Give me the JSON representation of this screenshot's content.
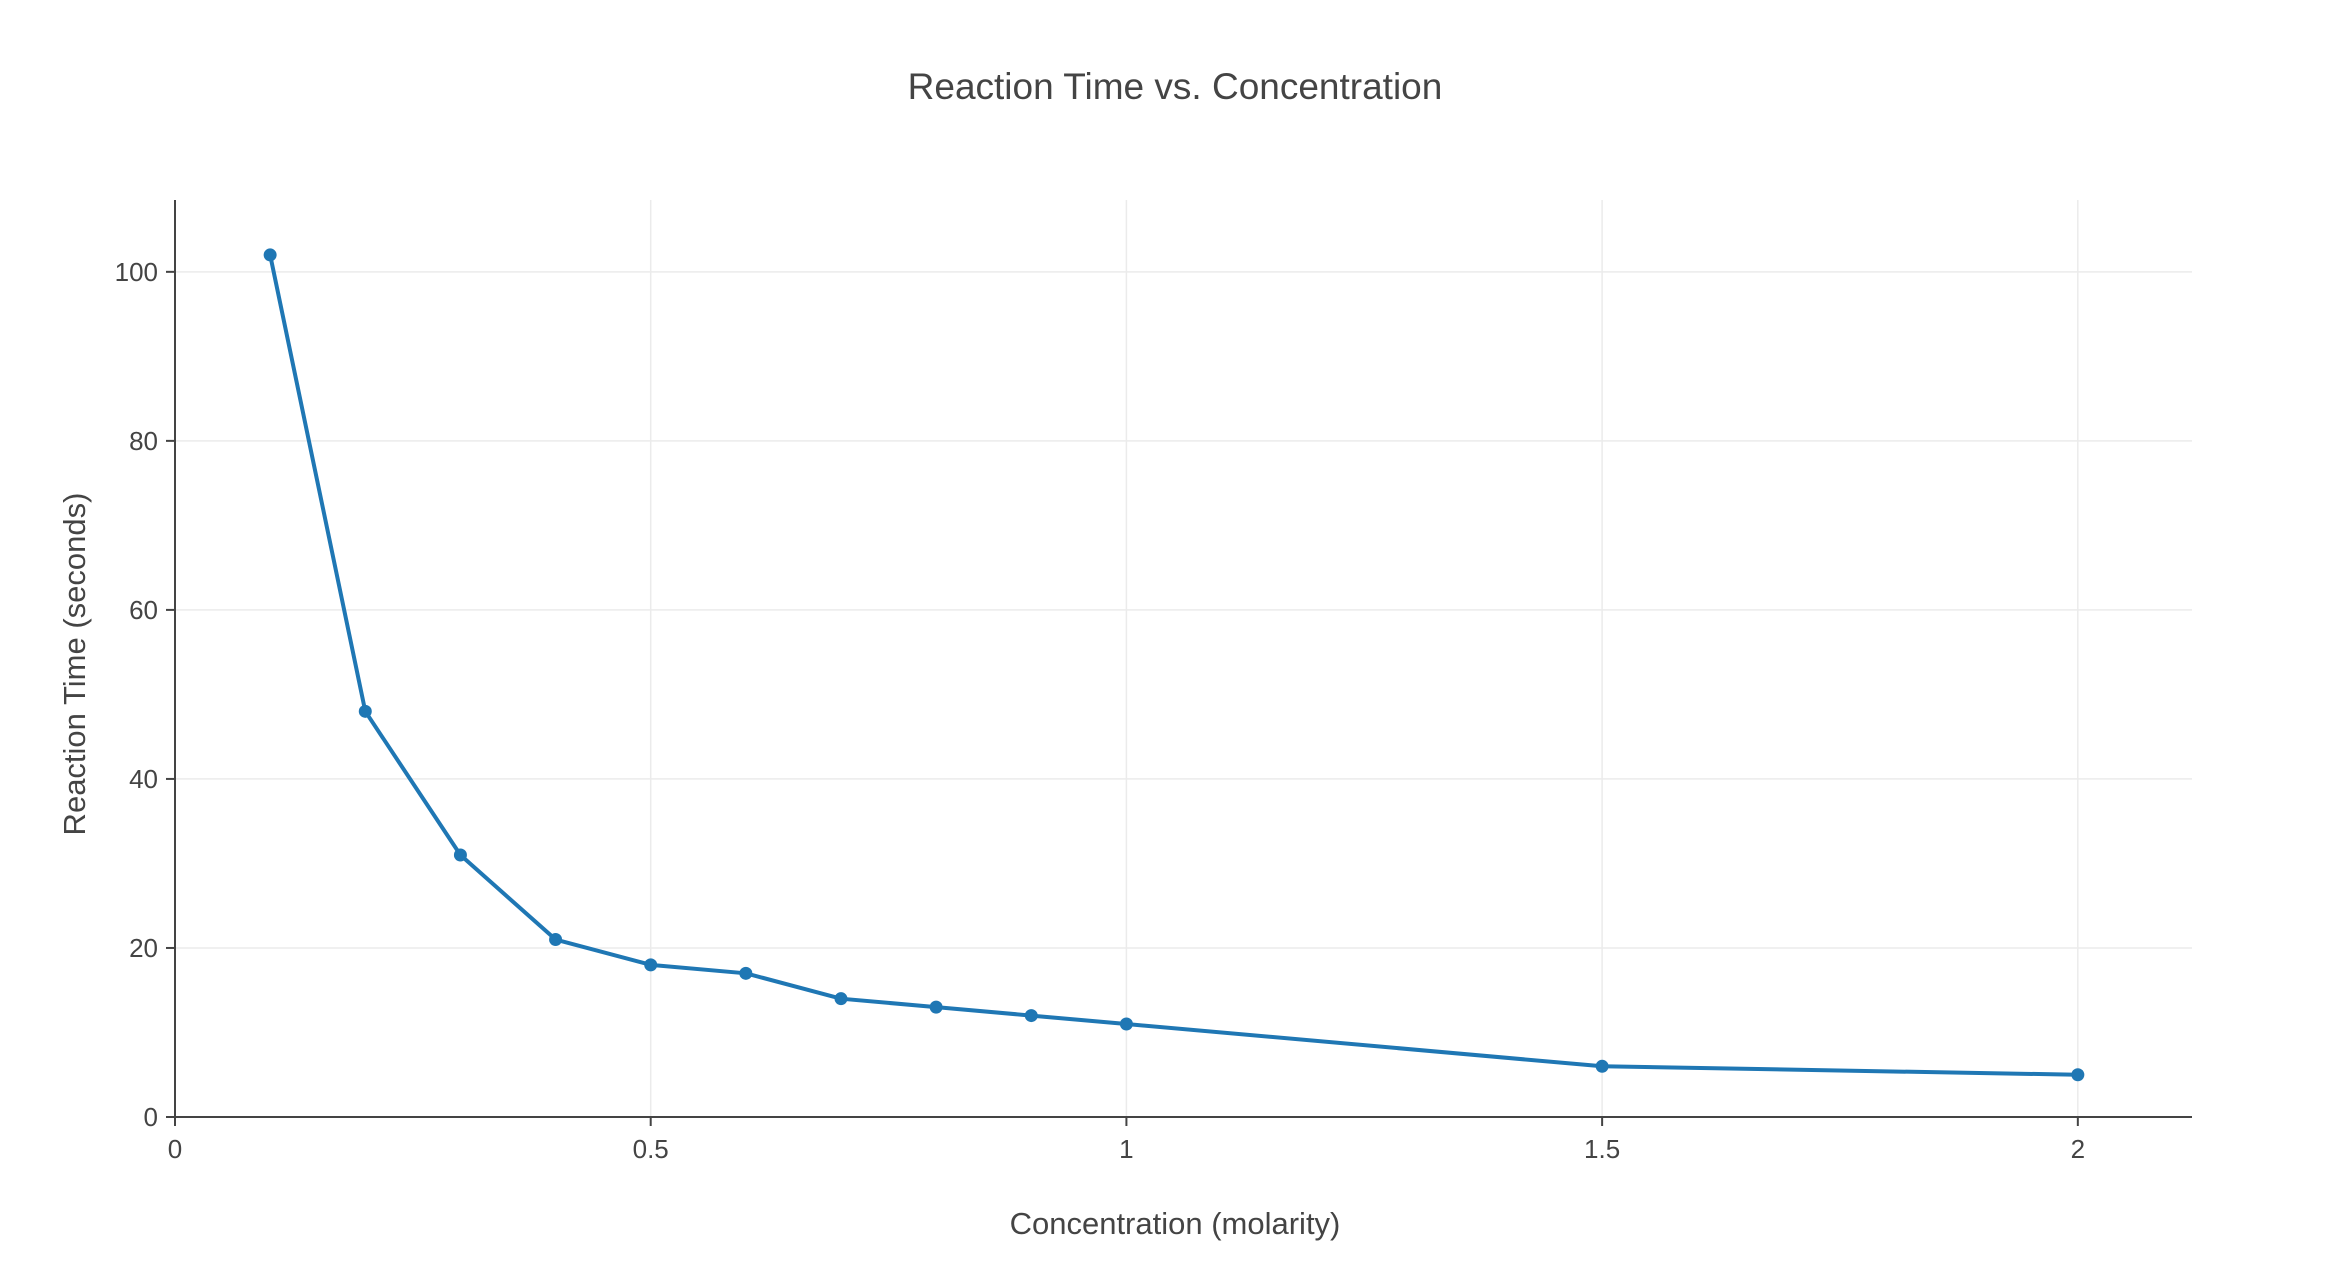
{
  "chart_data": {
    "type": "line",
    "title": "Reaction Time vs. Concentration",
    "xlabel": "Concentration (molarity)",
    "ylabel": "Reaction Time (seconds)",
    "x": [
      0.1,
      0.2,
      0.3,
      0.4,
      0.5,
      0.6,
      0.7,
      0.8,
      0.9,
      1.0,
      1.5,
      2.0
    ],
    "series": [
      {
        "values": [
          102,
          48,
          31,
          21,
          18,
          17,
          14,
          13,
          12,
          11,
          6,
          5
        ],
        "color": "#1f77b4",
        "markers": true
      }
    ],
    "xlim": [
      0,
      2.12
    ],
    "ylim": [
      0,
      108.5
    ],
    "xticks": [
      0,
      0.5,
      1,
      1.5,
      2
    ],
    "xtick_labels": [
      "0",
      "0.5",
      "1",
      "1.5",
      "2"
    ],
    "yticks": [
      0,
      20,
      40,
      60,
      80,
      100
    ],
    "ytick_labels": [
      "0",
      "20",
      "40",
      "60",
      "80",
      "100"
    ],
    "grid": true,
    "legend": "none"
  }
}
